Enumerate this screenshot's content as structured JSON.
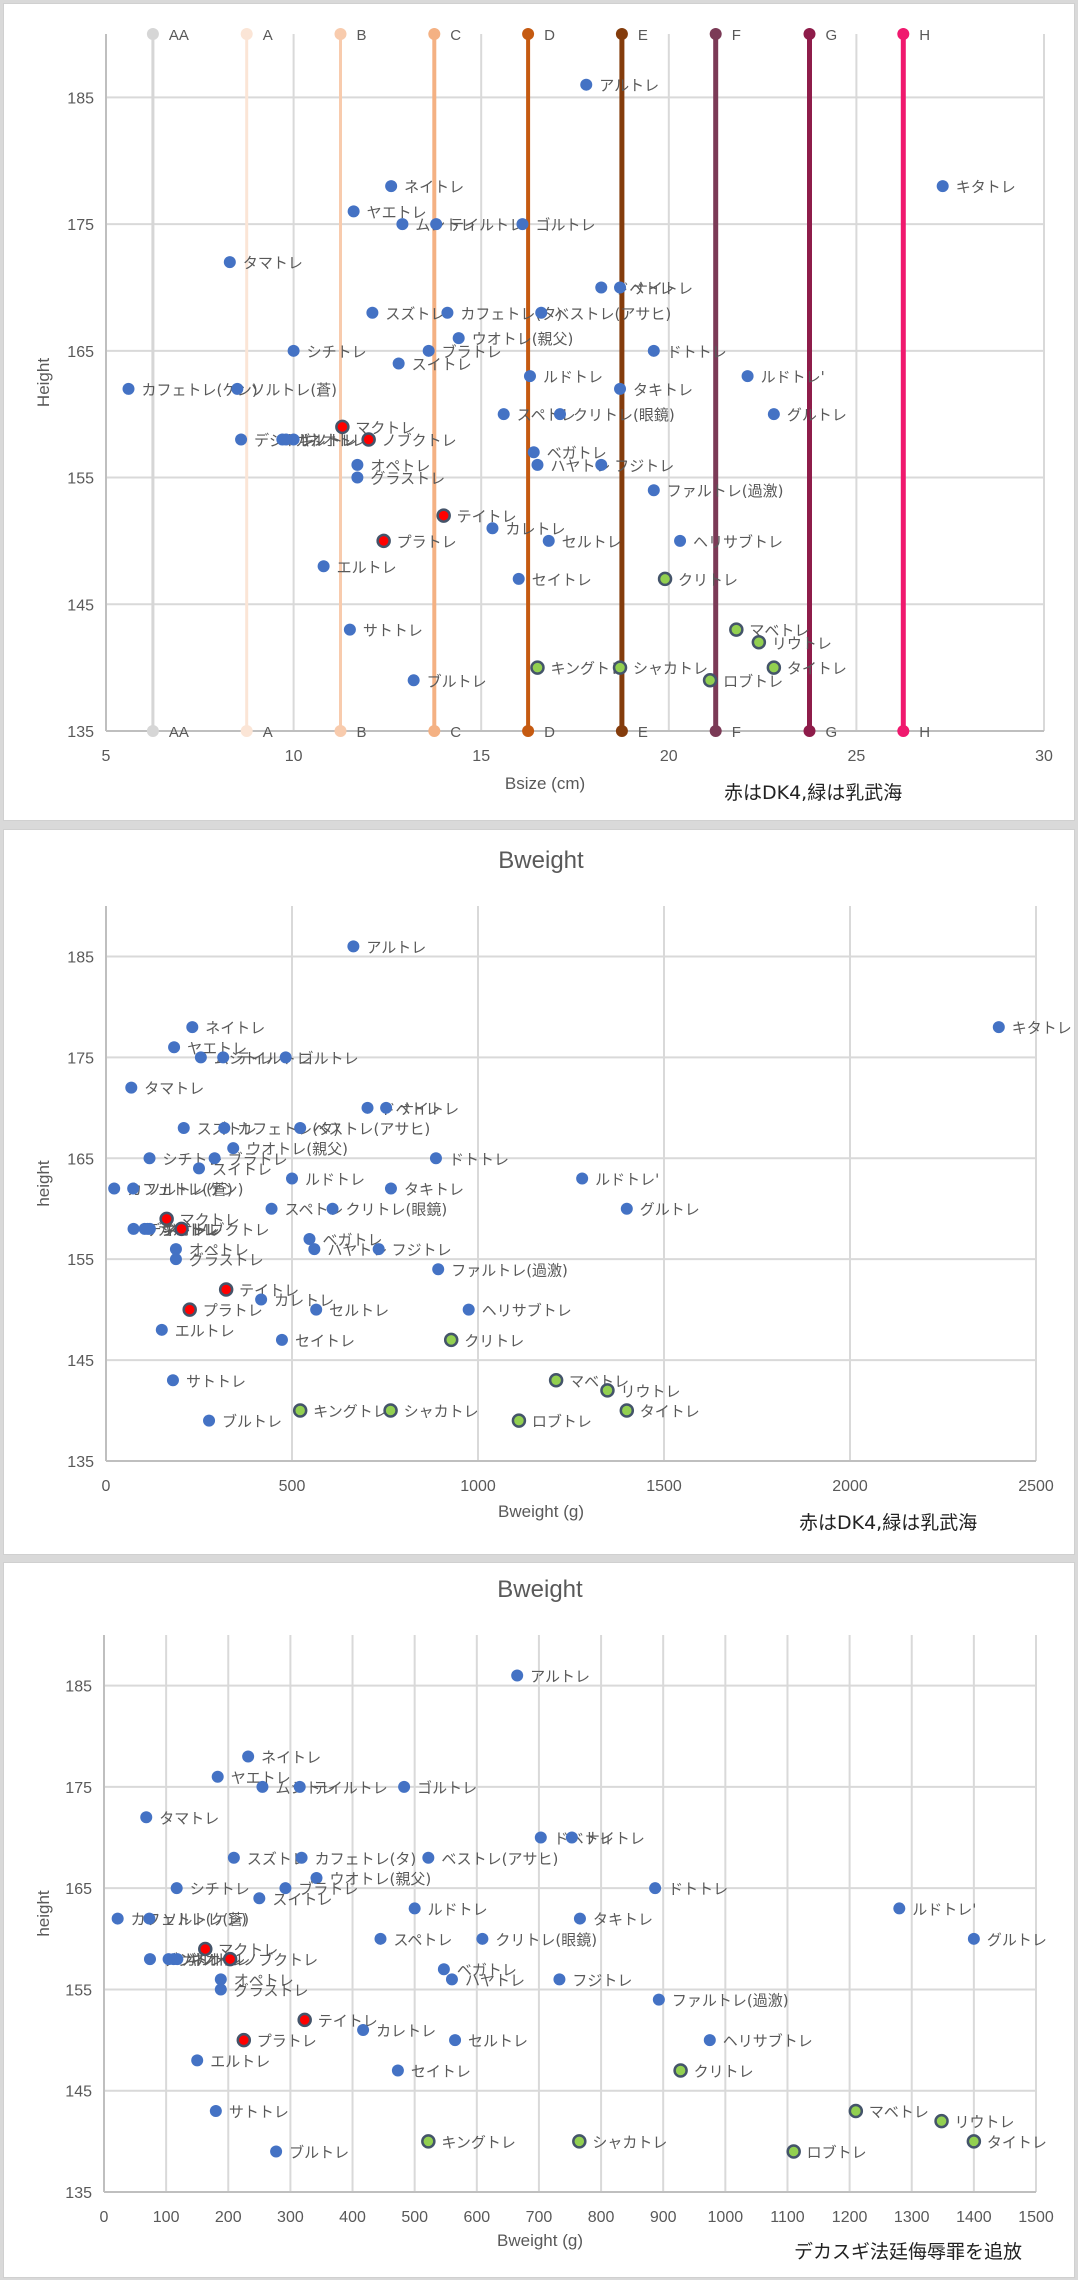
{
  "colors": {
    "point": "#4472c4",
    "dk4": "#ff0000",
    "nyubukai": "#92d050",
    "outline_special": "#44546a",
    "grid": "#d9d9d9",
    "axis": "#bfbfbf"
  },
  "chart_data": [
    {
      "id": "chart1",
      "type": "scatter",
      "title": "",
      "xlabel": "Bsize (cm)",
      "ylabel": "Height",
      "xlim": [
        5,
        30
      ],
      "ylim": [
        135,
        190
      ],
      "xticks": [
        5,
        10,
        15,
        20,
        25,
        30
      ],
      "yticks": [
        135,
        145,
        155,
        165,
        175,
        185
      ],
      "grid": true,
      "note": "赤はDK4,緑は乳武海",
      "cup_bands": [
        {
          "label": "AA",
          "x": 6.25,
          "color": "#d6d6d6"
        },
        {
          "label": "A",
          "x": 8.75,
          "color": "#fbe5d6"
        },
        {
          "label": "B",
          "x": 11.25,
          "color": "#f8cbad"
        },
        {
          "label": "C",
          "x": 13.75,
          "color": "#f4b183"
        },
        {
          "label": "D",
          "x": 16.25,
          "color": "#c55a11"
        },
        {
          "label": "E",
          "x": 18.75,
          "color": "#843c0c"
        },
        {
          "label": "F",
          "x": 21.25,
          "color": "#7b3a56"
        },
        {
          "label": "G",
          "x": 23.75,
          "color": "#8e1c4a"
        },
        {
          "label": "H",
          "x": 26.25,
          "color": "#f0196e"
        }
      ],
      "series_key": "bsize"
    },
    {
      "id": "chart2",
      "type": "scatter",
      "title": "Bweight",
      "xlabel": "Bweight (g)",
      "ylabel": "height",
      "xlim": [
        0,
        2500
      ],
      "ylim": [
        135,
        190
      ],
      "xticks": [
        0,
        500,
        1000,
        1500,
        2000,
        2500
      ],
      "yticks": [
        135,
        145,
        155,
        165,
        175,
        185
      ],
      "grid": true,
      "note": "赤はDK4,緑は乳武海",
      "series_key": "bweight"
    },
    {
      "id": "chart3",
      "type": "scatter",
      "title": "Bweight",
      "xlabel": "Bweight (g)",
      "ylabel": "height",
      "xlim": [
        0,
        1500
      ],
      "ylim": [
        135,
        190
      ],
      "xticks": [
        0,
        100,
        200,
        300,
        400,
        500,
        600,
        700,
        800,
        900,
        1000,
        1100,
        1200,
        1300,
        1400,
        1500
      ],
      "yticks": [
        135,
        145,
        155,
        165,
        175,
        185
      ],
      "grid": true,
      "note": "デカスギ法廷侮辱罪を追放",
      "series_key": "bweight"
    }
  ],
  "points": [
    {
      "name": "アルトレ",
      "bsize": 17.8,
      "height": 186,
      "bweight": 665,
      "cat": "normal"
    },
    {
      "name": "キタトレ",
      "bsize": 27.3,
      "height": 178,
      "bweight": 2400,
      "cat": "normal"
    },
    {
      "name": "ネイトレ",
      "bsize": 12.6,
      "height": 178,
      "bweight": 232,
      "cat": "normal"
    },
    {
      "name": "ヤエトレ",
      "bsize": 11.6,
      "height": 176,
      "bweight": 183,
      "cat": "normal"
    },
    {
      "name": "ムシトレ",
      "bsize": 12.9,
      "height": 175,
      "bweight": 255,
      "cat": "normal"
    },
    {
      "name": "テイルトレ",
      "bsize": 13.8,
      "height": 175,
      "bweight": 315,
      "cat": "normal"
    },
    {
      "name": "ゴルトレ",
      "bsize": 16.1,
      "height": 175,
      "bweight": 483,
      "cat": "normal"
    },
    {
      "name": "タマトレ",
      "bsize": 8.3,
      "height": 172,
      "bweight": 68,
      "cat": "normal"
    },
    {
      "name": "ドベトレ",
      "bsize": 18.2,
      "height": 170,
      "bweight": 703,
      "cat": "normal"
    },
    {
      "name": "ナイトレ",
      "bsize": 18.7,
      "height": 170,
      "bweight": 753,
      "cat": "normal"
    },
    {
      "name": "スズトレ",
      "bsize": 12.1,
      "height": 168,
      "bweight": 209,
      "cat": "normal"
    },
    {
      "name": "カフェトレ(タ)",
      "bsize": 14.1,
      "height": 168,
      "bweight": 318,
      "cat": "normal"
    },
    {
      "name": "ベストレ(アサヒ)",
      "bsize": 16.6,
      "height": 168,
      "bweight": 522,
      "cat": "normal"
    },
    {
      "name": "ウオトレ(親父)",
      "bsize": 14.4,
      "height": 166,
      "bweight": 342,
      "cat": "normal"
    },
    {
      "name": "シチトレ",
      "bsize": 10.0,
      "height": 165,
      "bweight": 117,
      "cat": "normal"
    },
    {
      "name": "ブラトレ",
      "bsize": 13.6,
      "height": 165,
      "bweight": 292,
      "cat": "normal"
    },
    {
      "name": "スイトレ",
      "bsize": 12.8,
      "height": 164,
      "bweight": 250,
      "cat": "normal"
    },
    {
      "name": "ドトトレ",
      "bsize": 19.6,
      "height": 165,
      "bweight": 887,
      "cat": "normal"
    },
    {
      "name": "ルドトレ",
      "bsize": 16.3,
      "height": 163,
      "bweight": 500,
      "cat": "normal"
    },
    {
      "name": "ルドトレ'",
      "bsize": 22.1,
      "height": 163,
      "bweight": 1280,
      "cat": "normal"
    },
    {
      "name": "カフェトレ(ケン)",
      "bsize": 5.6,
      "height": 162,
      "bweight": 22,
      "cat": "normal"
    },
    {
      "name": "ソルトレ(蒼)",
      "bsize": 8.5,
      "height": 162,
      "bweight": 73,
      "cat": "normal"
    },
    {
      "name": "タキトレ",
      "bsize": 18.7,
      "height": 162,
      "bweight": 766,
      "cat": "normal"
    },
    {
      "name": "スペトレ",
      "bsize": 15.6,
      "height": 160,
      "bweight": 445,
      "cat": "normal"
    },
    {
      "name": "クリトレ(眼鏡)",
      "bsize": 17.1,
      "height": 160,
      "bweight": 609,
      "cat": "normal"
    },
    {
      "name": "グルトレ",
      "bsize": 22.8,
      "height": 160,
      "bweight": 1400,
      "cat": "normal"
    },
    {
      "name": "マクトレ",
      "bsize": 11.3,
      "height": 159,
      "bweight": 163,
      "cat": "dk4"
    },
    {
      "name": "デジトレ",
      "bsize": 8.6,
      "height": 158,
      "bweight": 74,
      "cat": "normal"
    },
    {
      "name": "ガルトレ",
      "bsize": 9.7,
      "height": 158,
      "bweight": 104,
      "cat": "normal"
    },
    {
      "name": "キノトレ",
      "bsize": 9.8,
      "height": 158,
      "bweight": 112,
      "cat": "normal"
    },
    {
      "name": "ネオトレ",
      "bsize": 10.0,
      "height": 158,
      "bweight": 118,
      "cat": "normal"
    },
    {
      "name": "ノブクトレ",
      "bsize": 12.0,
      "height": 158,
      "bweight": 203,
      "cat": "dk4"
    },
    {
      "name": "オペトレ",
      "bsize": 11.7,
      "height": 156,
      "bweight": 188,
      "cat": "normal"
    },
    {
      "name": "ベガトレ",
      "bsize": 16.4,
      "height": 157,
      "bweight": 547,
      "cat": "normal"
    },
    {
      "name": "ハヤトレ",
      "bsize": 16.5,
      "height": 156,
      "bweight": 560,
      "cat": "normal"
    },
    {
      "name": "フジトレ",
      "bsize": 18.2,
      "height": 156,
      "bweight": 733,
      "cat": "normal"
    },
    {
      "name": "グラストレ",
      "bsize": 11.7,
      "height": 155,
      "bweight": 188,
      "cat": "normal"
    },
    {
      "name": "ファルトレ(過激)",
      "bsize": 19.6,
      "height": 154,
      "bweight": 893,
      "cat": "normal"
    },
    {
      "name": "テイトレ",
      "bsize": 14.0,
      "height": 152,
      "bweight": 323,
      "cat": "dk4"
    },
    {
      "name": "カレトレ",
      "bsize": 15.3,
      "height": 151,
      "bweight": 417,
      "cat": "normal"
    },
    {
      "name": "プラトレ",
      "bsize": 12.4,
      "height": 150,
      "bweight": 225,
      "cat": "dk4"
    },
    {
      "name": "セルトレ",
      "bsize": 16.8,
      "height": 150,
      "bweight": 565,
      "cat": "normal"
    },
    {
      "name": "ヘリサブトレ",
      "bsize": 20.3,
      "height": 150,
      "bweight": 975,
      "cat": "normal"
    },
    {
      "name": "エルトレ",
      "bsize": 10.8,
      "height": 148,
      "bweight": 150,
      "cat": "normal"
    },
    {
      "name": "セイトレ",
      "bsize": 16.0,
      "height": 147,
      "bweight": 473,
      "cat": "normal"
    },
    {
      "name": "クリトレ",
      "bsize": 19.9,
      "height": 147,
      "bweight": 928,
      "cat": "nyubukai"
    },
    {
      "name": "サトトレ",
      "bsize": 11.5,
      "height": 143,
      "bweight": 180,
      "cat": "normal"
    },
    {
      "name": "マベトレ",
      "bsize": 21.8,
      "height": 143,
      "bweight": 1210,
      "cat": "nyubukai"
    },
    {
      "name": "リウトレ",
      "bsize": 22.4,
      "height": 142,
      "bweight": 1348,
      "cat": "nyubukai"
    },
    {
      "name": "キングトレ",
      "bsize": 16.5,
      "height": 140,
      "bweight": 522,
      "cat": "nyubukai"
    },
    {
      "name": "シャカトレ",
      "bsize": 18.7,
      "height": 140,
      "bweight": 765,
      "cat": "nyubukai"
    },
    {
      "name": "タイトレ",
      "bsize": 22.8,
      "height": 140,
      "bweight": 1400,
      "cat": "nyubukai"
    },
    {
      "name": "ロブトレ",
      "bsize": 21.1,
      "height": 139,
      "bweight": 1110,
      "cat": "nyubukai"
    },
    {
      "name": "ブルトレ",
      "bsize": 13.2,
      "height": 139,
      "bweight": 277,
      "cat": "normal"
    }
  ]
}
